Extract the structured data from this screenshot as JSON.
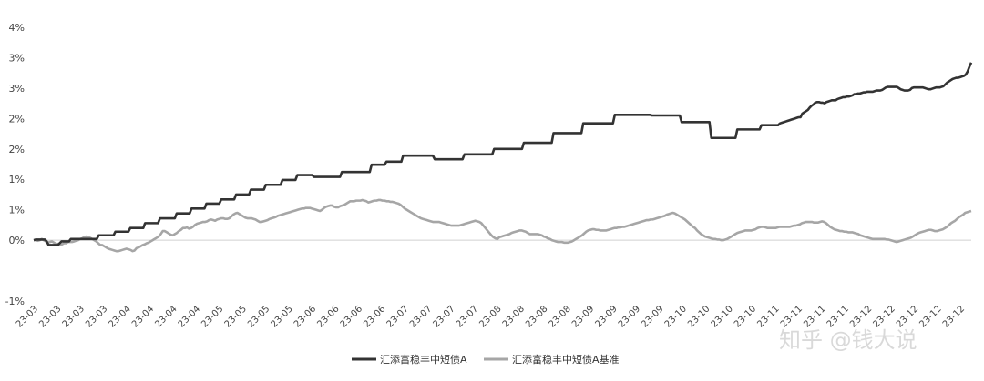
{
  "chart_data": {
    "type": "line",
    "title": "",
    "xlabel": "",
    "ylabel": "",
    "y_tick_labels": [
      "4%",
      "3%",
      "3%",
      "2%",
      "2%",
      "1%",
      "1%",
      "0%",
      "-1%"
    ],
    "y_tick_values": [
      4,
      3.5,
      3,
      2.5,
      2,
      1.5,
      1,
      0.5,
      -0.5
    ],
    "ylim": [
      -0.5,
      4
    ],
    "x_tick_labels": [
      "23-03",
      "23-03",
      "23-03",
      "23-03",
      "23-04",
      "23-04",
      "23-04",
      "23-04",
      "23-05",
      "23-05",
      "23-05",
      "23-05",
      "23-06",
      "23-06",
      "23-06",
      "23-06",
      "23-07",
      "23-07",
      "23-07",
      "23-07",
      "23-08",
      "23-08",
      "23-08",
      "23-08",
      "23-09",
      "23-09",
      "23-09",
      "23-09",
      "23-10",
      "23-10",
      "23-10",
      "23-10",
      "23-11",
      "23-11",
      "23-11",
      "23-11",
      "23-12",
      "23-12",
      "23-12",
      "23-12",
      "23-12"
    ],
    "grid": false,
    "legend_position": "bottom-center",
    "series": [
      {
        "name": "汇添富稳丰中短债A",
        "color": "#333333",
        "values": [
          0.5,
          0.51,
          0.51,
          0.51,
          0.51,
          0.51,
          0.51,
          0.48,
          0.42,
          0.42,
          0.42,
          0.42,
          0.42,
          0.42,
          0.45,
          0.48,
          0.48,
          0.48,
          0.48,
          0.48,
          0.52,
          0.52,
          0.52,
          0.52,
          0.52,
          0.52,
          0.52,
          0.52,
          0.52,
          0.52,
          0.52,
          0.52,
          0.52,
          0.52,
          0.52,
          0.58,
          0.58,
          0.58,
          0.58,
          0.58,
          0.58,
          0.58,
          0.58,
          0.58,
          0.64,
          0.64,
          0.64,
          0.64,
          0.64,
          0.64,
          0.64,
          0.64,
          0.7,
          0.7,
          0.7,
          0.7,
          0.7,
          0.7,
          0.7,
          0.7,
          0.78,
          0.78,
          0.78,
          0.78,
          0.78,
          0.78,
          0.78,
          0.78,
          0.86,
          0.86,
          0.86,
          0.86,
          0.86,
          0.86,
          0.86,
          0.86,
          0.86,
          0.94,
          0.94,
          0.94,
          0.94,
          0.94,
          0.94,
          0.94,
          0.94,
          1.02,
          1.02,
          1.02,
          1.02,
          1.02,
          1.02,
          1.02,
          1.02,
          1.1,
          1.1,
          1.1,
          1.1,
          1.1,
          1.1,
          1.1,
          1.1,
          1.17,
          1.17,
          1.17,
          1.17,
          1.17,
          1.17,
          1.17,
          1.17,
          1.25,
          1.25,
          1.25,
          1.25,
          1.25,
          1.25,
          1.25,
          1.25,
          1.33,
          1.33,
          1.33,
          1.33,
          1.33,
          1.33,
          1.33,
          1.33,
          1.41,
          1.41,
          1.41,
          1.41,
          1.41,
          1.41,
          1.41,
          1.41,
          1.41,
          1.49,
          1.49,
          1.49,
          1.49,
          1.49,
          1.49,
          1.49,
          1.49,
          1.57,
          1.57,
          1.57,
          1.57,
          1.57,
          1.57,
          1.57,
          1.57,
          1.57,
          1.54,
          1.54,
          1.54,
          1.54,
          1.54,
          1.54,
          1.54,
          1.54,
          1.54,
          1.54,
          1.54,
          1.54,
          1.54,
          1.54,
          1.54,
          1.62,
          1.62,
          1.62,
          1.62,
          1.62,
          1.62,
          1.62,
          1.62,
          1.62,
          1.62,
          1.62,
          1.62,
          1.62,
          1.62,
          1.62,
          1.62,
          1.74,
          1.74,
          1.74,
          1.74,
          1.74,
          1.74,
          1.74,
          1.74,
          1.79,
          1.79,
          1.79,
          1.79,
          1.79,
          1.79,
          1.79,
          1.79,
          1.79,
          1.89,
          1.89,
          1.89,
          1.89,
          1.89,
          1.89,
          1.89,
          1.89,
          1.89,
          1.89,
          1.89,
          1.89,
          1.89,
          1.89,
          1.89,
          1.89,
          1.89,
          1.83,
          1.83,
          1.83,
          1.83,
          1.83,
          1.83,
          1.83,
          1.83,
          1.83,
          1.83,
          1.83,
          1.83,
          1.83,
          1.83,
          1.83,
          1.83,
          1.91,
          1.91,
          1.91,
          1.91,
          1.91,
          1.91,
          1.91,
          1.91,
          1.91,
          1.91,
          1.91,
          1.91,
          1.91,
          1.91,
          1.91,
          1.91,
          2.0,
          2.0,
          2.0,
          2.0,
          2.0,
          2.0,
          2.0,
          2.0,
          2.0,
          2.0,
          2.0,
          2.0,
          2.0,
          2.0,
          2.0,
          2.0,
          2.1,
          2.1,
          2.1,
          2.1,
          2.1,
          2.1,
          2.1,
          2.1,
          2.1,
          2.1,
          2.1,
          2.1,
          2.1,
          2.1,
          2.1,
          2.1,
          2.26,
          2.26,
          2.26,
          2.26,
          2.26,
          2.26,
          2.26,
          2.26,
          2.26,
          2.26,
          2.26,
          2.26,
          2.26,
          2.26,
          2.26,
          2.26,
          2.42,
          2.42,
          2.42,
          2.42,
          2.42,
          2.42,
          2.42,
          2.42,
          2.42,
          2.42,
          2.42,
          2.42,
          2.42,
          2.42,
          2.42,
          2.42,
          2.42,
          2.56,
          2.56,
          2.56,
          2.56,
          2.56,
          2.56,
          2.56,
          2.56,
          2.56,
          2.56,
          2.56,
          2.56,
          2.56,
          2.56,
          2.56,
          2.56,
          2.56,
          2.56,
          2.56,
          2.56,
          2.55,
          2.55,
          2.55,
          2.55,
          2.55,
          2.55,
          2.55,
          2.55,
          2.55,
          2.55,
          2.55,
          2.55,
          2.55,
          2.55,
          2.55,
          2.55,
          2.44,
          2.44,
          2.44,
          2.44,
          2.44,
          2.44,
          2.44,
          2.44,
          2.44,
          2.44,
          2.44,
          2.44,
          2.44,
          2.44,
          2.44,
          2.44,
          2.18,
          2.18,
          2.18,
          2.18,
          2.18,
          2.18,
          2.18,
          2.18,
          2.18,
          2.18,
          2.18,
          2.18,
          2.18,
          2.18,
          2.32,
          2.32,
          2.32,
          2.32,
          2.32,
          2.32,
          2.32,
          2.32,
          2.32,
          2.32,
          2.32,
          2.32,
          2.32,
          2.39,
          2.39,
          2.39,
          2.39,
          2.39,
          2.39,
          2.39,
          2.39,
          2.39,
          2.39,
          2.42,
          2.43,
          2.44,
          2.45,
          2.46,
          2.47,
          2.48,
          2.49,
          2.5,
          2.51,
          2.52,
          2.52,
          2.58,
          2.6,
          2.62,
          2.64,
          2.68,
          2.71,
          2.73,
          2.76,
          2.77,
          2.77,
          2.76,
          2.76,
          2.75,
          2.77,
          2.78,
          2.79,
          2.8,
          2.8,
          2.8,
          2.82,
          2.83,
          2.84,
          2.85,
          2.85,
          2.86,
          2.86,
          2.87,
          2.88,
          2.9,
          2.9,
          2.91,
          2.91,
          2.92,
          2.93,
          2.93,
          2.94,
          2.94,
          2.94,
          2.94,
          2.95,
          2.96,
          2.96,
          2.96,
          2.97,
          2.99,
          3.01,
          3.02,
          3.02,
          3.02,
          3.02,
          3.02,
          3.02,
          3.0,
          2.98,
          2.97,
          2.96,
          2.96,
          2.96,
          2.97,
          3.0,
          3.01,
          3.01,
          3.01,
          3.01,
          3.01,
          3.01,
          3.0,
          2.99,
          2.98,
          2.98,
          2.99,
          3.0,
          3.01,
          3.01,
          3.01,
          3.02,
          3.03,
          3.06,
          3.09,
          3.11,
          3.13,
          3.15,
          3.16,
          3.17,
          3.17,
          3.18,
          3.19,
          3.2,
          3.22,
          3.27,
          3.35,
          3.42
        ]
      },
      {
        "name": "汇添富稳丰中短债A基准",
        "color": "#a6a6a6",
        "values": [
          0.5,
          0.5,
          0.49,
          0.5,
          0.52,
          0.5,
          0.48,
          0.46,
          0.47,
          0.48,
          0.46,
          0.44,
          0.44,
          0.43,
          0.43,
          0.45,
          0.45,
          0.47,
          0.47,
          0.47,
          0.48,
          0.49,
          0.5,
          0.52,
          0.53,
          0.55,
          0.56,
          0.55,
          0.54,
          0.52,
          0.5,
          0.48,
          0.45,
          0.42,
          0.42,
          0.4,
          0.38,
          0.36,
          0.35,
          0.34,
          0.33,
          0.32,
          0.32,
          0.33,
          0.34,
          0.35,
          0.36,
          0.35,
          0.34,
          0.32,
          0.33,
          0.37,
          0.38,
          0.4,
          0.42,
          0.43,
          0.45,
          0.46,
          0.48,
          0.5,
          0.52,
          0.54,
          0.56,
          0.6,
          0.65,
          0.65,
          0.63,
          0.61,
          0.59,
          0.58,
          0.6,
          0.62,
          0.65,
          0.67,
          0.7,
          0.7,
          0.71,
          0.69,
          0.7,
          0.72,
          0.75,
          0.77,
          0.78,
          0.79,
          0.8,
          0.8,
          0.81,
          0.83,
          0.84,
          0.83,
          0.82,
          0.84,
          0.85,
          0.86,
          0.86,
          0.85,
          0.85,
          0.86,
          0.89,
          0.92,
          0.94,
          0.95,
          0.93,
          0.91,
          0.89,
          0.87,
          0.86,
          0.86,
          0.86,
          0.85,
          0.84,
          0.82,
          0.8,
          0.8,
          0.81,
          0.82,
          0.83,
          0.85,
          0.86,
          0.87,
          0.88,
          0.9,
          0.91,
          0.92,
          0.93,
          0.94,
          0.95,
          0.96,
          0.97,
          0.98,
          0.99,
          1.0,
          1.01,
          1.02,
          1.02,
          1.03,
          1.03,
          1.03,
          1.02,
          1.01,
          1.0,
          0.99,
          0.98,
          1.0,
          1.03,
          1.05,
          1.06,
          1.07,
          1.07,
          1.05,
          1.04,
          1.04,
          1.06,
          1.07,
          1.08,
          1.1,
          1.12,
          1.14,
          1.14,
          1.14,
          1.15,
          1.15,
          1.15,
          1.16,
          1.15,
          1.14,
          1.12,
          1.13,
          1.14,
          1.15,
          1.15,
          1.16,
          1.16,
          1.15,
          1.15,
          1.14,
          1.14,
          1.13,
          1.13,
          1.12,
          1.11,
          1.1,
          1.08,
          1.05,
          1.02,
          1.0,
          0.98,
          0.96,
          0.94,
          0.92,
          0.9,
          0.88,
          0.86,
          0.85,
          0.84,
          0.83,
          0.82,
          0.81,
          0.8,
          0.8,
          0.8,
          0.8,
          0.79,
          0.78,
          0.77,
          0.76,
          0.75,
          0.74,
          0.74,
          0.74,
          0.74,
          0.74,
          0.75,
          0.76,
          0.77,
          0.78,
          0.79,
          0.8,
          0.81,
          0.82,
          0.81,
          0.8,
          0.78,
          0.74,
          0.7,
          0.66,
          0.62,
          0.58,
          0.55,
          0.53,
          0.52,
          0.55,
          0.56,
          0.57,
          0.58,
          0.59,
          0.6,
          0.62,
          0.63,
          0.64,
          0.65,
          0.66,
          0.66,
          0.65,
          0.64,
          0.62,
          0.6,
          0.6,
          0.6,
          0.6,
          0.6,
          0.59,
          0.58,
          0.56,
          0.55,
          0.53,
          0.52,
          0.5,
          0.49,
          0.48,
          0.47,
          0.47,
          0.47,
          0.46,
          0.46,
          0.46,
          0.47,
          0.48,
          0.5,
          0.52,
          0.54,
          0.56,
          0.58,
          0.61,
          0.64,
          0.66,
          0.67,
          0.68,
          0.68,
          0.67,
          0.67,
          0.66,
          0.66,
          0.66,
          0.66,
          0.67,
          0.68,
          0.69,
          0.7,
          0.7,
          0.71,
          0.71,
          0.72,
          0.72,
          0.73,
          0.74,
          0.75,
          0.76,
          0.77,
          0.78,
          0.79,
          0.8,
          0.81,
          0.82,
          0.83,
          0.83,
          0.84,
          0.84,
          0.85,
          0.86,
          0.87,
          0.88,
          0.89,
          0.9,
          0.92,
          0.93,
          0.94,
          0.95,
          0.94,
          0.92,
          0.9,
          0.88,
          0.86,
          0.84,
          0.81,
          0.78,
          0.75,
          0.72,
          0.7,
          0.66,
          0.63,
          0.6,
          0.58,
          0.56,
          0.55,
          0.54,
          0.53,
          0.52,
          0.52,
          0.51,
          0.51,
          0.5,
          0.5,
          0.51,
          0.52,
          0.54,
          0.56,
          0.58,
          0.6,
          0.62,
          0.63,
          0.64,
          0.65,
          0.66,
          0.66,
          0.66,
          0.66,
          0.67,
          0.68,
          0.7,
          0.71,
          0.72,
          0.72,
          0.71,
          0.7,
          0.7,
          0.7,
          0.7,
          0.7,
          0.71,
          0.72,
          0.72,
          0.72,
          0.72,
          0.72,
          0.72,
          0.73,
          0.74,
          0.74,
          0.75,
          0.76,
          0.78,
          0.79,
          0.8,
          0.8,
          0.8,
          0.8,
          0.79,
          0.79,
          0.79,
          0.8,
          0.81,
          0.8,
          0.78,
          0.75,
          0.72,
          0.7,
          0.68,
          0.67,
          0.66,
          0.65,
          0.65,
          0.64,
          0.64,
          0.63,
          0.63,
          0.63,
          0.62,
          0.61,
          0.6,
          0.58,
          0.57,
          0.56,
          0.55,
          0.54,
          0.53,
          0.52,
          0.52,
          0.52,
          0.52,
          0.52,
          0.52,
          0.52,
          0.51,
          0.51,
          0.5,
          0.49,
          0.48,
          0.47,
          0.48,
          0.49,
          0.5,
          0.51,
          0.52,
          0.53,
          0.54,
          0.56,
          0.58,
          0.6,
          0.62,
          0.63,
          0.64,
          0.65,
          0.66,
          0.67,
          0.67,
          0.66,
          0.65,
          0.65,
          0.66,
          0.67,
          0.68,
          0.7,
          0.72,
          0.75,
          0.78,
          0.8,
          0.82,
          0.85,
          0.88,
          0.9,
          0.92,
          0.95,
          0.96,
          0.97,
          0.98
        ]
      }
    ]
  },
  "watermark": "知乎 @钱大说"
}
